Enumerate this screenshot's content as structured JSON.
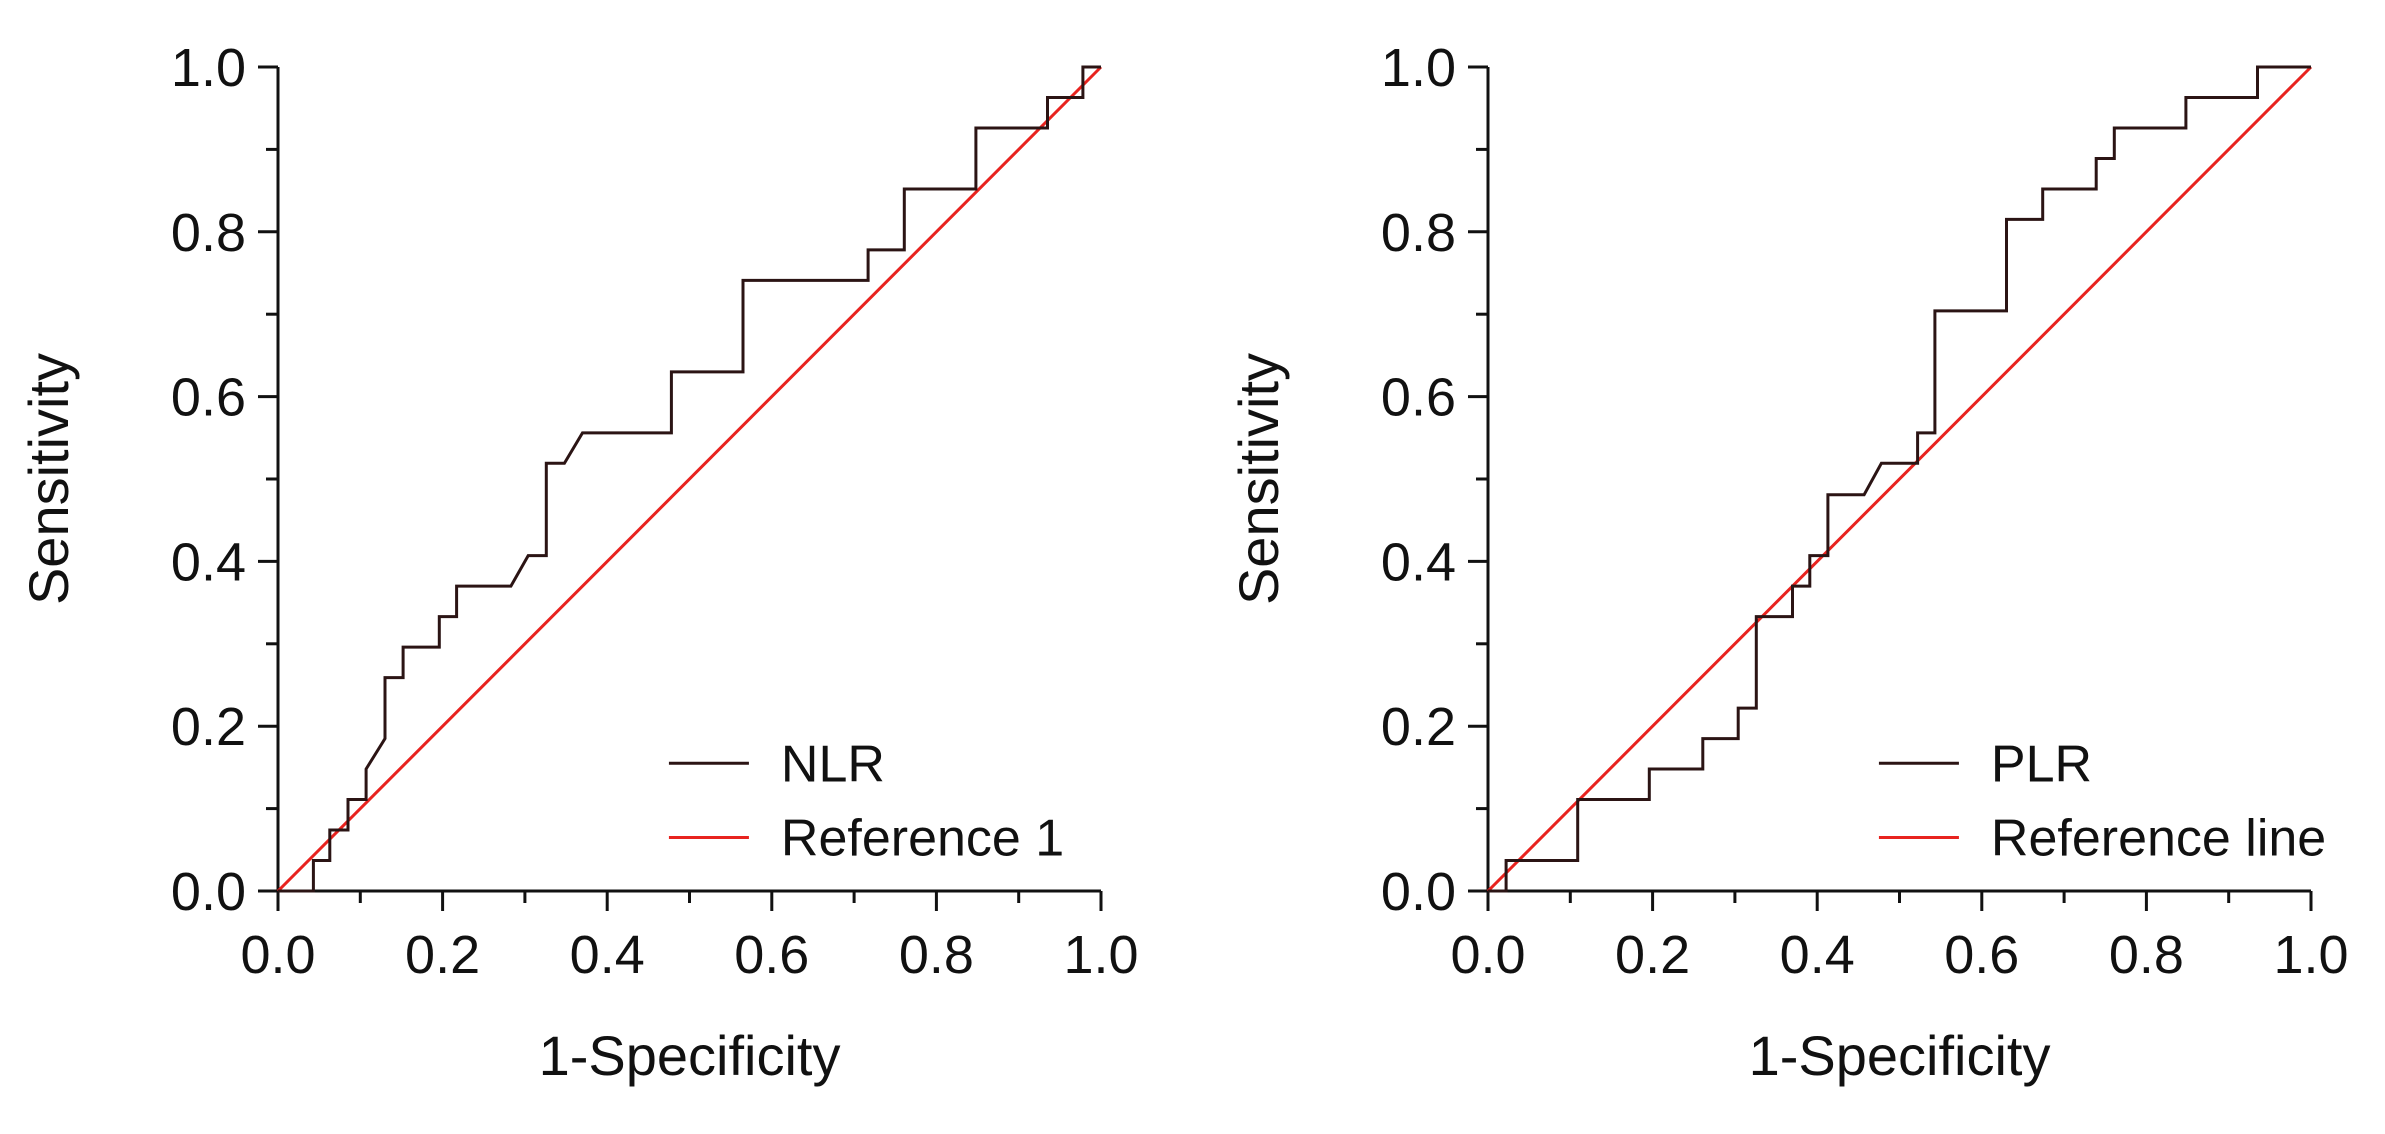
{
  "chart_data": [
    {
      "type": "line",
      "xlabel": "1-Specificity",
      "ylabel": "Sensitivity",
      "xlim": [
        0,
        1
      ],
      "ylim": [
        0,
        1
      ],
      "x_ticks": [
        "0.0",
        "0.2",
        "0.4",
        "0.6",
        "0.8",
        "1.0"
      ],
      "y_ticks": [
        "0.0",
        "0.2",
        "0.4",
        "0.6",
        "0.8",
        "1.0"
      ],
      "legend_position": "bottom-right",
      "grid": false,
      "series": [
        {
          "name": "NLR",
          "color": "#2b1414",
          "x": [
            0.0,
            0.043,
            0.043,
            0.063,
            0.063,
            0.085,
            0.085,
            0.107,
            0.107,
            0.13,
            0.13,
            0.152,
            0.152,
            0.196,
            0.196,
            0.217,
            0.217,
            0.283,
            0.304,
            0.304,
            0.326,
            0.326,
            0.348,
            0.37,
            0.478,
            0.478,
            0.565,
            0.565,
            0.717,
            0.717,
            0.761,
            0.761,
            0.848,
            0.848,
            0.935,
            0.935,
            0.978,
            0.978,
            1.0
          ],
          "y": [
            0.0,
            0.0,
            0.037,
            0.037,
            0.074,
            0.074,
            0.111,
            0.111,
            0.148,
            0.185,
            0.259,
            0.259,
            0.296,
            0.296,
            0.333,
            0.333,
            0.37,
            0.37,
            0.407,
            0.407,
            0.407,
            0.519,
            0.519,
            0.556,
            0.556,
            0.63,
            0.63,
            0.741,
            0.741,
            0.778,
            0.778,
            0.852,
            0.852,
            0.926,
            0.926,
            0.963,
            0.963,
            1.0,
            1.0
          ]
        },
        {
          "name": "Reference 1",
          "color": "#e8231f",
          "x": [
            0,
            1
          ],
          "y": [
            0,
            1
          ]
        }
      ]
    },
    {
      "type": "line",
      "xlabel": "1-Specificity",
      "ylabel": "Sensitivity",
      "xlim": [
        0,
        1
      ],
      "ylim": [
        0,
        1
      ],
      "x_ticks": [
        "0.0",
        "0.2",
        "0.4",
        "0.6",
        "0.8",
        "1.0"
      ],
      "y_ticks": [
        "0.0",
        "0.2",
        "0.4",
        "0.6",
        "0.8",
        "1.0"
      ],
      "legend_position": "bottom-right",
      "grid": false,
      "series": [
        {
          "name": "PLR",
          "color": "#2b1414",
          "x": [
            0.0,
            0.022,
            0.022,
            0.109,
            0.109,
            0.196,
            0.196,
            0.261,
            0.261,
            0.304,
            0.304,
            0.326,
            0.326,
            0.37,
            0.37,
            0.391,
            0.391,
            0.413,
            0.413,
            0.457,
            0.478,
            0.522,
            0.522,
            0.543,
            0.543,
            0.63,
            0.63,
            0.674,
            0.674,
            0.739,
            0.739,
            0.761,
            0.761,
            0.848,
            0.848,
            0.935,
            0.935,
            1.0
          ],
          "y": [
            0.0,
            0.0,
            0.037,
            0.037,
            0.111,
            0.111,
            0.148,
            0.148,
            0.185,
            0.185,
            0.222,
            0.222,
            0.333,
            0.333,
            0.37,
            0.37,
            0.407,
            0.407,
            0.481,
            0.481,
            0.519,
            0.519,
            0.556,
            0.556,
            0.704,
            0.704,
            0.815,
            0.815,
            0.852,
            0.852,
            0.889,
            0.889,
            0.926,
            0.926,
            0.963,
            0.963,
            1.0,
            1.0
          ]
        },
        {
          "name": "Reference line",
          "color": "#e8231f",
          "x": [
            0,
            1
          ],
          "y": [
            0,
            1
          ]
        }
      ]
    }
  ]
}
